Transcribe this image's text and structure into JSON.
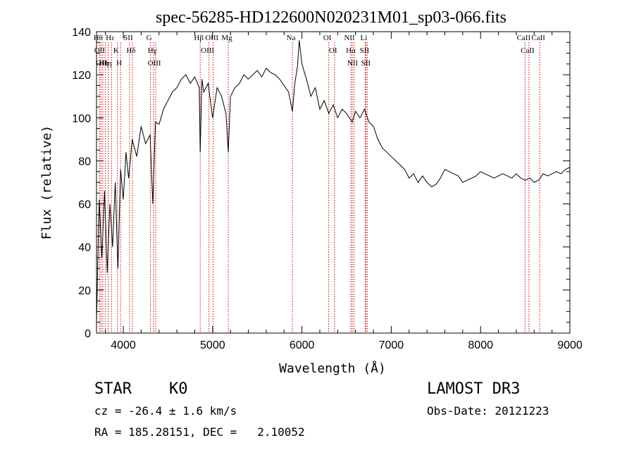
{
  "chart_data": {
    "type": "line",
    "title": "spec-56285-HD122600N020231M01_sp03-066.fits",
    "xlabel": "Wavelength (Å)",
    "ylabel": "Flux (relative)",
    "xlim": [
      3700,
      9000
    ],
    "ylim": [
      0,
      140
    ],
    "xticks": [
      4000,
      5000,
      6000,
      7000,
      8000,
      9000
    ],
    "yticks": [
      0,
      20,
      40,
      60,
      80,
      100,
      120,
      140
    ],
    "series": [
      {
        "name": "flux",
        "x": [
          3700,
          3730,
          3760,
          3790,
          3820,
          3850,
          3880,
          3910,
          3940,
          3970,
          4000,
          4030,
          4060,
          4100,
          4150,
          4200,
          4250,
          4300,
          4330,
          4360,
          4400,
          4450,
          4500,
          4550,
          4600,
          4650,
          4700,
          4750,
          4800,
          4850,
          4861,
          4880,
          4900,
          4950,
          5000,
          5050,
          5100,
          5150,
          5175,
          5200,
          5250,
          5300,
          5350,
          5400,
          5450,
          5500,
          5550,
          5600,
          5650,
          5700,
          5750,
          5800,
          5850,
          5893,
          5920,
          5950,
          5970,
          6000,
          6050,
          6100,
          6150,
          6200,
          6250,
          6300,
          6350,
          6400,
          6450,
          6500,
          6563,
          6600,
          6650,
          6700,
          6750,
          6800,
          6850,
          6900,
          6950,
          7000,
          7050,
          7100,
          7150,
          7200,
          7250,
          7300,
          7350,
          7400,
          7450,
          7500,
          7550,
          7600,
          7650,
          7700,
          7750,
          7800,
          7850,
          7900,
          7950,
          8000,
          8050,
          8100,
          8150,
          8200,
          8250,
          8300,
          8350,
          8400,
          8450,
          8500,
          8550,
          8600,
          8650,
          8700,
          8750,
          8800,
          8850,
          8900,
          8950,
          9000
        ],
        "values": [
          5,
          62,
          35,
          66,
          28,
          60,
          40,
          70,
          30,
          76,
          62,
          84,
          72,
          90,
          82,
          96,
          88,
          92,
          60,
          98,
          97,
          104,
          108,
          112,
          114,
          118,
          120,
          116,
          119,
          114,
          84,
          118,
          112,
          116,
          100,
          114,
          110,
          102,
          84,
          110,
          114,
          116,
          120,
          118,
          120,
          122,
          119,
          123,
          121,
          120,
          118,
          115,
          112,
          103,
          116,
          124,
          136,
          125,
          118,
          110,
          114,
          104,
          108,
          102,
          106,
          100,
          104,
          102,
          98,
          103,
          100,
          104,
          98,
          96,
          90,
          86,
          84,
          82,
          80,
          78,
          76,
          72,
          74,
          70,
          73,
          70,
          68,
          69,
          72,
          76,
          75,
          74,
          73,
          70,
          71,
          72,
          73,
          75,
          74,
          73,
          72,
          73,
          74,
          73,
          72,
          74,
          72,
          71,
          72,
          70,
          71,
          74,
          73,
          74,
          75,
          74,
          76,
          77
        ]
      }
    ],
    "line_marks": [
      {
        "x": 3734,
        "labels": [
          "Hθ"
        ]
      },
      {
        "x": 3750,
        "labels": [
          "OII"
        ]
      },
      {
        "x": 3770,
        "labels": [
          "OII"
        ]
      },
      {
        "x": 3798,
        "labels": [
          "Hη"
        ]
      },
      {
        "x": 3830,
        "labels": [
          "Hη"
        ]
      },
      {
        "x": 3869,
        "labels": [
          "Hε"
        ]
      },
      {
        "x": 3934,
        "labels": [
          "K"
        ]
      },
      {
        "x": 3969,
        "labels": [
          "H"
        ]
      },
      {
        "x": 4070,
        "labels": [
          "SII"
        ]
      },
      {
        "x": 4102,
        "labels": [
          "Hδ"
        ]
      },
      {
        "x": 4304,
        "labels": [
          "G"
        ]
      },
      {
        "x": 4340,
        "labels": [
          "Hγ"
        ]
      },
      {
        "x": 4363,
        "labels": [
          "OIII"
        ]
      },
      {
        "x": 4861,
        "labels": [
          "Hβ"
        ]
      },
      {
        "x": 4959,
        "labels": [
          "OIII"
        ]
      },
      {
        "x": 5007,
        "labels": [
          "OIII"
        ]
      },
      {
        "x": 5175,
        "labels": [
          "Mg"
        ]
      },
      {
        "x": 5893,
        "labels": [
          "Na"
        ]
      },
      {
        "x": 6300,
        "labels": [
          "OI"
        ]
      },
      {
        "x": 6364,
        "labels": [
          "OI"
        ]
      },
      {
        "x": 6548,
        "labels": [
          "NII"
        ]
      },
      {
        "x": 6563,
        "labels": [
          "Hα"
        ]
      },
      {
        "x": 6583,
        "labels": [
          "NII"
        ]
      },
      {
        "x": 6708,
        "labels": [
          "Li"
        ]
      },
      {
        "x": 6716,
        "labels": [
          "SII"
        ]
      },
      {
        "x": 6731,
        "labels": [
          "SII"
        ]
      },
      {
        "x": 8498,
        "labels": [
          "CaII"
        ]
      },
      {
        "x": 8542,
        "labels": [
          "CaII"
        ]
      },
      {
        "x": 8662,
        "labels": [
          "CaII"
        ]
      }
    ],
    "line_mark_color": "#cc0000",
    "line_color": "#000000"
  },
  "info": {
    "class_label": "STAR",
    "subclass": "K0",
    "survey": "LAMOST DR3",
    "cz": "cz = -26.4 ± 1.6 km/s",
    "obs_date": "Obs-Date: 20121223",
    "coords": "RA = 185.28151, DEC =   2.10052"
  }
}
